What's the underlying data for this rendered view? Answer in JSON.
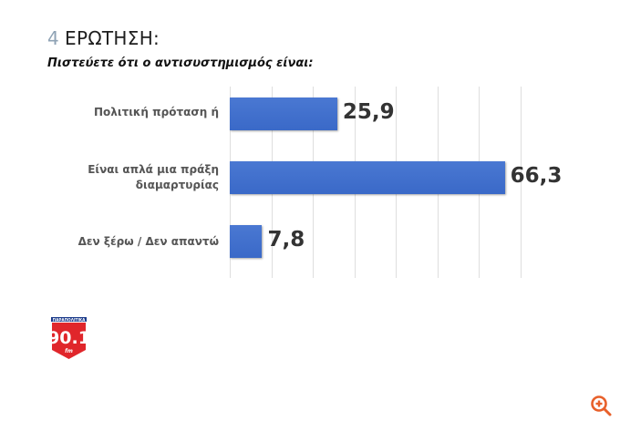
{
  "header": {
    "question_number": "4",
    "question_label": "ΕΡΩΤΗΣΗ:",
    "question_text": "Πιστεύετε ότι ο αντισυστημισμός είναι:"
  },
  "brand": {
    "top_text": "ΠΑΡΑΠΟΛΙΤΙΚΑ",
    "frequency": "90.1",
    "band": "fm",
    "color": "#e0262b"
  },
  "zoom_button": {
    "icon": "zoom-in-icon",
    "color": "#e8602a"
  },
  "chart_data": {
    "type": "bar",
    "orientation": "horizontal",
    "title": "4 ΕΡΩΤΗΣΗ: Πιστεύετε ότι ο αντισυστημισμός είναι:",
    "categories": [
      "Πολιτική πρόταση ή",
      "Είναι απλά μια πράξη διαμαρτυρίας",
      "Δεν ξέρω / Δεν απαντώ"
    ],
    "category_lines": [
      [
        "Πολιτική πρόταση ή"
      ],
      [
        "Είναι απλά μια πράξη",
        "διαμαρτυρίας"
      ],
      [
        "Δεν ξέρω / Δεν απαντώ"
      ]
    ],
    "values": [
      25.9,
      66.3,
      7.8
    ],
    "value_labels": [
      "25,9",
      "66,3",
      "7,8"
    ],
    "xlabel": "",
    "ylabel": "",
    "xlim": [
      0,
      70
    ],
    "gridlines": [
      0,
      10,
      20,
      30,
      40,
      50,
      60,
      70
    ],
    "grid": true,
    "legend": false,
    "bar_color": "#3a69c8"
  }
}
